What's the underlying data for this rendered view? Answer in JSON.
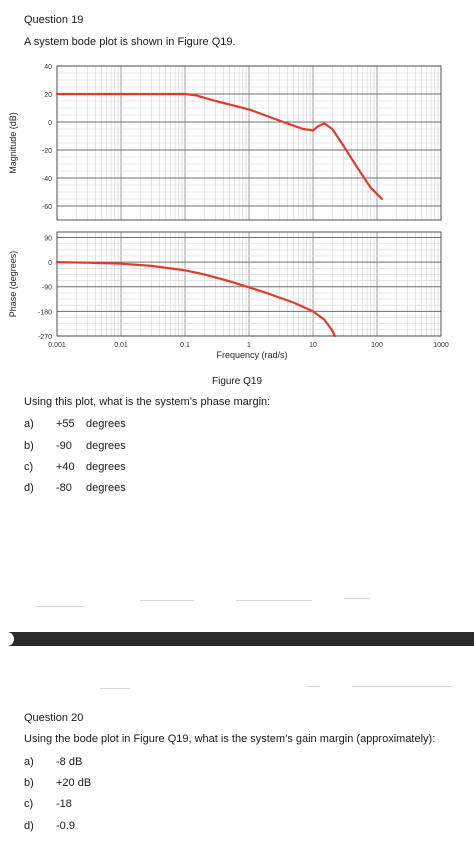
{
  "q19": {
    "title": "Question 19",
    "prompt": "A system bode plot is shown in Figure Q19.",
    "figure_caption": "Figure Q19",
    "question": "Using this plot, what is the system’s phase margin:",
    "options": [
      {
        "letter": "a)",
        "value": "+55",
        "unit": "degrees"
      },
      {
        "letter": "b)",
        "value": "-90",
        "unit": "degrees"
      },
      {
        "letter": "c)",
        "value": "+40",
        "unit": "degrees"
      },
      {
        "letter": "d)",
        "value": "-80",
        "unit": "degrees"
      }
    ]
  },
  "q20": {
    "title": "Question 20",
    "question": "Using the bode plot in Figure Q19, what is the system’s gain margin (approximately):",
    "options": [
      {
        "letter": "a)",
        "value": "-8 dB"
      },
      {
        "letter": "b)",
        "value": "+20 dB"
      },
      {
        "letter": "c)",
        "value": "-18"
      },
      {
        "letter": "d)",
        "value": "-0.9"
      }
    ]
  },
  "chart_data": [
    {
      "type": "line",
      "ylabel": "Magnitude (dB)",
      "xlabel": "",
      "xscale": "log",
      "xlim": [
        0.001,
        1000
      ],
      "ylim": [
        -70,
        40
      ],
      "yticks": [
        40,
        20,
        0,
        -20,
        -40,
        -60
      ],
      "grid": true,
      "line_color": "#e03a2a",
      "series": [
        {
          "x": [
            0.001,
            0.01,
            0.03,
            0.1,
            0.15,
            0.3,
            1,
            3,
            7,
            10,
            12,
            15,
            20,
            30,
            50,
            80,
            120
          ],
          "y": [
            20,
            20,
            20,
            20,
            19,
            15,
            9,
            1,
            -5,
            -6,
            -3,
            -1,
            -5,
            -17,
            -33,
            -47,
            -55
          ]
        }
      ]
    },
    {
      "type": "line",
      "ylabel": "Phase (degrees)",
      "xlabel": "Frequency (rad/s)",
      "xscale": "log",
      "xlim": [
        0.001,
        1000
      ],
      "ylim": [
        -270,
        110
      ],
      "yticks": [
        90,
        0,
        -90,
        -180,
        -270
      ],
      "xticks": [
        "0.001",
        "0.01",
        "0.1",
        "1",
        "10",
        "100",
        "1000"
      ],
      "grid": true,
      "line_color": "#e03a2a",
      "series": [
        {
          "x": [
            0.001,
            0.003,
            0.01,
            0.03,
            0.1,
            0.2,
            0.5,
            1,
            2,
            5,
            10,
            15,
            20,
            22
          ],
          "y": [
            0,
            -2,
            -6,
            -14,
            -30,
            -45,
            -70,
            -92,
            -115,
            -148,
            -180,
            -210,
            -250,
            -270
          ]
        }
      ]
    }
  ]
}
